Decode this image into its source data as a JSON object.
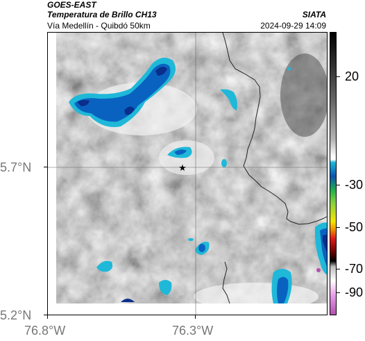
{
  "header": {
    "satellite": "GOES-EAST",
    "product": "Temperatura de Brillo CH13",
    "route": "Vía Medellín - Quibdó 50km",
    "agency": "SIATA",
    "datetime": "2024-09-29 14:09"
  },
  "axes": {
    "y_ticks": [
      "5.7°N",
      "5.2°N"
    ],
    "x_ticks": [
      "76.8°W",
      "76.3°W"
    ]
  },
  "colorbar": {
    "ticks": [
      "20",
      "-30",
      "-50",
      "-70",
      "-90"
    ],
    "colors": {
      "warm_white": "#ffffff",
      "gray_mid": "#8a8a8a",
      "gray_dark": "#1a1a1a",
      "cyan": "#1fb8d8",
      "blue": "#0a52b0",
      "green": "#22b14c",
      "yellow": "#f5e600",
      "red": "#e21a1a",
      "black": "#000000",
      "magenta": "#b050b0"
    }
  },
  "map": {
    "marker_icon": "star-icon"
  }
}
